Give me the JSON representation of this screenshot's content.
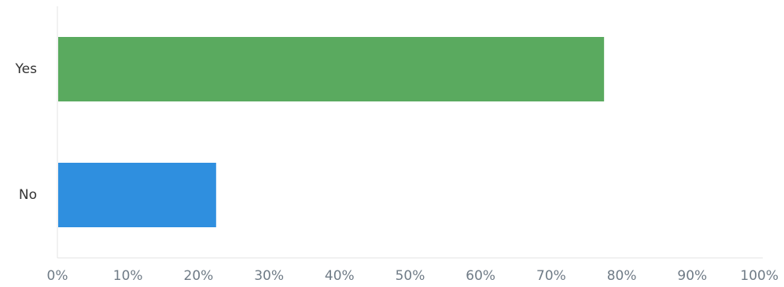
{
  "chart_data": {
    "type": "bar",
    "orientation": "horizontal",
    "title": "",
    "xlabel": "",
    "ylabel": "",
    "categories": [
      "Yes",
      "No"
    ],
    "values": [
      77.5,
      22.5
    ],
    "colors": [
      "#5aaa5f",
      "#2f8fdf"
    ],
    "xlim": [
      0,
      100
    ],
    "xticks": [
      "0%",
      "10%",
      "20%",
      "30%",
      "40%",
      "50%",
      "60%",
      "70%",
      "80%",
      "90%",
      "100%"
    ],
    "grid": false
  }
}
